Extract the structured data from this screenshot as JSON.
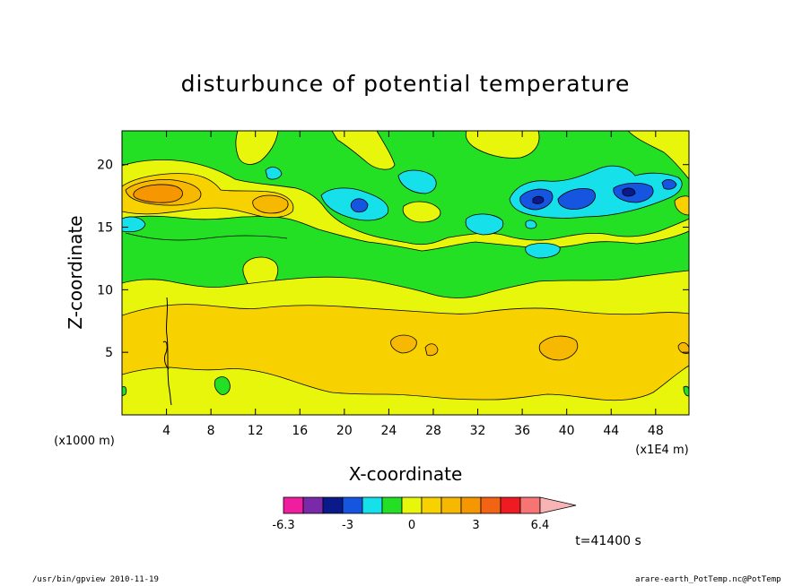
{
  "chart_data": {
    "type": "heatmap",
    "title": "disturbunce of potential temperature",
    "xlabel": "X-coordinate",
    "ylabel": "Z-coordinate",
    "x_unit_left": "(x1000 m)",
    "x_unit_right": "(x1E4 m)",
    "xlim": [
      0,
      51
    ],
    "ylim": [
      0,
      22.7
    ],
    "xticks": [
      "4",
      "8",
      "12",
      "16",
      "20",
      "24",
      "28",
      "32",
      "36",
      "40",
      "44",
      "48"
    ],
    "xtick_values": [
      4,
      8,
      12,
      16,
      20,
      24,
      28,
      32,
      36,
      40,
      44,
      48
    ],
    "yticks": [
      "5",
      "10",
      "15",
      "20"
    ],
    "ytick_values": [
      5,
      10,
      15,
      20
    ],
    "time_label": "t=41400 s",
    "colorbar": {
      "tick_labels": [
        "-6.3",
        "-3",
        "0",
        "3",
        "6.4"
      ],
      "tick_positions": [
        0,
        2,
        4,
        6,
        8
      ],
      "colors": [
        "#ee1e9e",
        "#7a2aa8",
        "#0a1a8a",
        "#1555e0",
        "#16e0ea",
        "#24e024",
        "#e8f60c",
        "#f8d200",
        "#f6b800",
        "#f69600",
        "#f26414",
        "#ee1c22",
        "#f67474",
        "#f8b4b4"
      ]
    },
    "levels_color": {
      "neg_strong": "#1555e0",
      "neg_darkest": "#0a1a8a",
      "neg_mid": "#16e0ea",
      "near_zero_neg": "#24e024",
      "near_zero_pos": "#e8f60c",
      "pos_low": "#f8d200",
      "pos_mid": "#f6b800",
      "pos_high": "#f69600"
    }
  },
  "footer": {
    "left": "/usr/bin/gpview  2010-11-19",
    "right": "arare-earth_PotTemp.nc@PotTemp"
  }
}
